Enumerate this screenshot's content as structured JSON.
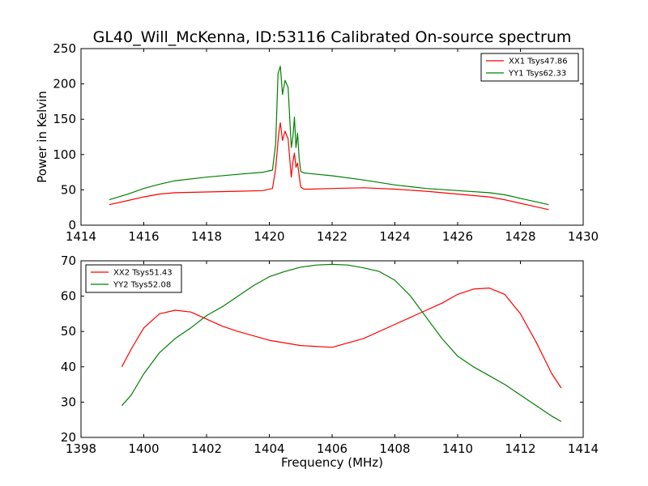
{
  "title": "GL40_Will_McKenna, ID:53116 Calibrated On-source spectrum",
  "chart_data": [
    {
      "type": "line",
      "title": "GL40_Will_McKenna, ID:53116 Calibrated On-source spectrum",
      "xlabel": "",
      "ylabel": "Power in Kelvin",
      "xlim": [
        1414,
        1430
      ],
      "ylim": [
        0,
        250
      ],
      "xticks": [
        "1414",
        "1416",
        "1418",
        "1420",
        "1422",
        "1424",
        "1426",
        "1428",
        "1430"
      ],
      "yticks": [
        "0",
        "50",
        "100",
        "150",
        "200",
        "250"
      ],
      "grid": false,
      "legend_position": "top-right",
      "series": [
        {
          "name": "XX1 Tsys47.86",
          "color": "#ff0000",
          "x": [
            1414.9,
            1415.5,
            1416.0,
            1416.5,
            1417.0,
            1418.0,
            1419.0,
            1419.8,
            1420.1,
            1420.2,
            1420.3,
            1420.35,
            1420.42,
            1420.5,
            1420.6,
            1420.7,
            1420.75,
            1420.8,
            1420.85,
            1420.9,
            1420.95,
            1421.0,
            1421.1,
            1421.3,
            1422.0,
            1423.0,
            1424.0,
            1425.0,
            1426.0,
            1427.0,
            1427.5,
            1428.0,
            1428.5,
            1428.9
          ],
          "y": [
            29,
            35,
            40,
            44,
            46,
            47,
            48,
            49,
            52,
            80,
            130,
            145,
            120,
            133,
            122,
            68,
            90,
            102,
            82,
            88,
            70,
            54,
            51,
            51,
            52,
            53,
            51,
            48,
            44,
            40,
            36,
            31,
            26,
            22
          ]
        },
        {
          "name": "YY1 Tsys62.33",
          "color": "#008000",
          "x": [
            1414.9,
            1415.5,
            1416.0,
            1416.5,
            1417.0,
            1418.0,
            1419.0,
            1419.8,
            1420.1,
            1420.2,
            1420.28,
            1420.35,
            1420.42,
            1420.5,
            1420.6,
            1420.7,
            1420.75,
            1420.8,
            1420.85,
            1420.9,
            1420.95,
            1421.0,
            1421.1,
            1421.3,
            1422.0,
            1423.0,
            1424.0,
            1425.0,
            1426.0,
            1427.0,
            1427.5,
            1428.0,
            1428.5,
            1428.9
          ],
          "y": [
            36,
            44,
            52,
            58,
            63,
            68,
            72,
            75,
            78,
            115,
            215,
            225,
            185,
            205,
            195,
            110,
            125,
            153,
            110,
            130,
            95,
            76,
            74,
            73,
            70,
            64,
            57,
            52,
            49,
            46,
            43,
            38,
            33,
            29
          ]
        }
      ]
    },
    {
      "type": "line",
      "title": "",
      "xlabel": "Frequency (MHz)",
      "ylabel": "",
      "xlim": [
        1398,
        1414
      ],
      "ylim": [
        20,
        70
      ],
      "xticks": [
        "1398",
        "1400",
        "1402",
        "1404",
        "1406",
        "1408",
        "1410",
        "1412",
        "1414"
      ],
      "yticks": [
        "20",
        "30",
        "40",
        "50",
        "60",
        "70"
      ],
      "grid": false,
      "legend_position": "top-left",
      "series": [
        {
          "name": "XX2 Tsys51.43",
          "color": "#ff0000",
          "x": [
            1399.3,
            1399.6,
            1400.0,
            1400.5,
            1401.0,
            1401.5,
            1402.0,
            1402.5,
            1403.0,
            1404.0,
            1405.0,
            1406.0,
            1407.0,
            1408.0,
            1409.0,
            1409.5,
            1410.0,
            1410.5,
            1411.0,
            1411.5,
            1412.0,
            1412.5,
            1413.0,
            1413.3
          ],
          "y": [
            40,
            45,
            51,
            55,
            56,
            55.5,
            53.5,
            51.5,
            50,
            47.5,
            46,
            45.5,
            48,
            52,
            56,
            58,
            60.5,
            62,
            62.3,
            60.5,
            55,
            47,
            38,
            34
          ]
        },
        {
          "name": "YY2 Tsys52.08",
          "color": "#008000",
          "x": [
            1399.3,
            1399.6,
            1400.0,
            1400.5,
            1401.0,
            1401.5,
            1402.0,
            1402.5,
            1403.0,
            1403.5,
            1404.0,
            1404.5,
            1405.0,
            1405.5,
            1406.0,
            1406.5,
            1407.0,
            1407.5,
            1408.0,
            1408.5,
            1409.0,
            1409.5,
            1410.0,
            1410.5,
            1411.0,
            1411.5,
            1412.0,
            1412.5,
            1413.0,
            1413.3
          ],
          "y": [
            29,
            32,
            38,
            44,
            48,
            51,
            54.5,
            57,
            60,
            63,
            65.5,
            67,
            68.2,
            68.8,
            69,
            68.8,
            68,
            67,
            64.5,
            60,
            54,
            48,
            43,
            40,
            37.5,
            35,
            32,
            29,
            26,
            24.5
          ]
        }
      ]
    }
  ]
}
